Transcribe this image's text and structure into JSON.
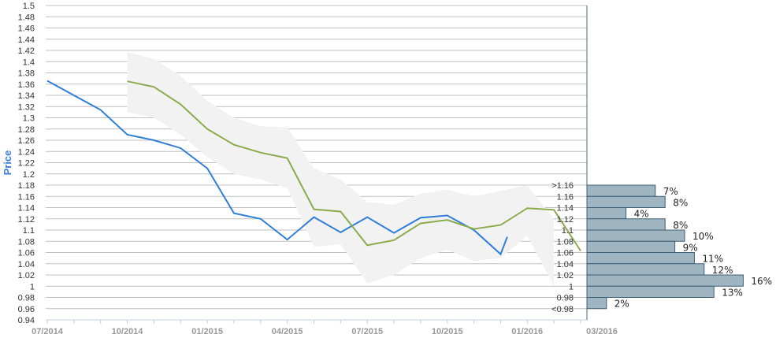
{
  "chart_data": {
    "type": "line",
    "ylabel": "Price",
    "ylim": [
      0.94,
      1.5
    ],
    "ytick_step": 0.02,
    "grid": true,
    "x_months": [
      "07/2014",
      "08/2014",
      "09/2014",
      "10/2014",
      "11/2014",
      "12/2014",
      "01/2015",
      "02/2015",
      "03/2015",
      "04/2015",
      "05/2015",
      "06/2015",
      "07/2015",
      "08/2015",
      "09/2015",
      "10/2015",
      "11/2015",
      "12/2015",
      "01/2016",
      "02/2016",
      "03/2016"
    ],
    "x_tick_labels": [
      "07/2014",
      "10/2014",
      "01/2015",
      "04/2015",
      "07/2015",
      "10/2015",
      "01/2016",
      "03/2016"
    ],
    "series": [
      {
        "color": "#2f7ed8",
        "points": [
          [
            "07/2014",
            1.366
          ],
          [
            "09/2014",
            1.314
          ],
          [
            "10/2014",
            1.27
          ],
          [
            "11/2014",
            1.26
          ],
          [
            "12/2014",
            1.246
          ],
          [
            "01/2015",
            1.21
          ],
          [
            "02/2015",
            1.13
          ],
          [
            "03/2015",
            1.12
          ],
          [
            "04/2015",
            1.083
          ],
          [
            "05/2015",
            1.123
          ],
          [
            "06/2015",
            1.096
          ],
          [
            "07/2015",
            1.123
          ],
          [
            "08/2015",
            1.095
          ],
          [
            "09/2015",
            1.122
          ],
          [
            "10/2015",
            1.126
          ],
          [
            "11/2015",
            1.1
          ],
          [
            "12/2015",
            1.057
          ],
          [
            "12/2015+",
            1.088
          ]
        ]
      },
      {
        "color": "#8bab4e",
        "points": [
          [
            "10/2014",
            1.365
          ],
          [
            "11/2014",
            1.355
          ],
          [
            "12/2014",
            1.324
          ],
          [
            "01/2015",
            1.28
          ],
          [
            "02/2015",
            1.252
          ],
          [
            "03/2015",
            1.238
          ],
          [
            "04/2015",
            1.228
          ],
          [
            "05/2015",
            1.137
          ],
          [
            "06/2015",
            1.133
          ],
          [
            "07/2015",
            1.073
          ],
          [
            "08/2015",
            1.082
          ],
          [
            "09/2015",
            1.112
          ],
          [
            "10/2015",
            1.118
          ],
          [
            "11/2015",
            1.102
          ],
          [
            "12/2015",
            1.109
          ],
          [
            "01/2016",
            1.139
          ],
          [
            "02/2016",
            1.136
          ],
          [
            "03/2016",
            1.063
          ]
        ]
      }
    ],
    "band": {
      "color": "#f2f2f2",
      "upper": [
        1.417,
        1.405,
        1.375,
        1.33,
        1.3,
        1.285,
        1.283,
        1.21,
        1.19,
        1.15,
        1.145,
        1.165,
        1.172,
        1.16,
        1.17,
        1.18,
        1.12
      ],
      "lower": [
        1.31,
        1.3,
        1.27,
        1.23,
        1.2,
        1.19,
        1.175,
        1.07,
        1.075,
        1.005,
        1.02,
        1.05,
        1.065,
        1.045,
        1.05,
        1.09,
        1.0
      ]
    },
    "histogram": {
      "fill": "#a0b5c2",
      "stroke": "#3d5f73",
      "bins": [
        ">1.16",
        "1.16",
        "1.14",
        "1.12",
        "1.1",
        "1.08",
        "1.06",
        "1.04",
        "1.02",
        "1",
        "0.98",
        "<0.98"
      ],
      "values": [
        7,
        8,
        4,
        8,
        10,
        9,
        11,
        12,
        16,
        13,
        2
      ],
      "labels": [
        "7%",
        "8%",
        "4%",
        "8%",
        "10%",
        "9%",
        "11%",
        "12%",
        "16%",
        "13%",
        "2%"
      ]
    }
  }
}
